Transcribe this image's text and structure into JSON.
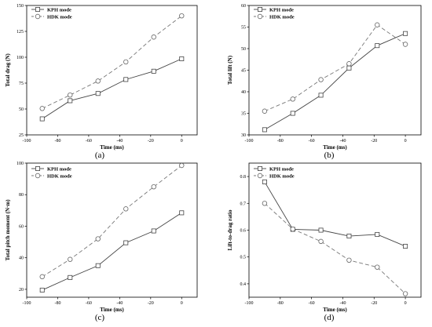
{
  "chart_data": [
    {
      "type": "line",
      "caption": "(a)",
      "xlabel": "Time (ms)",
      "ylabel": "Total drag (N)",
      "xlim": [
        -100,
        10
      ],
      "ylim": [
        25,
        150
      ],
      "xticks": [
        -100,
        -80,
        -60,
        -40,
        -20,
        0
      ],
      "yticks": [
        25,
        50,
        75,
        100,
        125,
        150
      ],
      "grid": false,
      "legend": "top-left",
      "x": [
        -90,
        -72,
        -54,
        -36,
        -18,
        0
      ],
      "series": [
        {
          "name": "KPH mode",
          "marker": "square",
          "dash": "solid",
          "values": [
            40.5,
            58,
            65,
            78.5,
            86.5,
            98.5
          ]
        },
        {
          "name": "HDK mode",
          "marker": "circle",
          "dash": "dashed",
          "values": [
            50.5,
            63.5,
            77,
            95.5,
            119.5,
            140
          ]
        }
      ]
    },
    {
      "type": "line",
      "caption": "(b)",
      "xlabel": "Time (ms)",
      "ylabel": "Total lift (N)",
      "xlim": [
        -100,
        10
      ],
      "ylim": [
        30,
        60
      ],
      "xticks": [
        -100,
        -80,
        -60,
        -40,
        -20,
        0
      ],
      "yticks": [
        30,
        35,
        40,
        45,
        50,
        55,
        60
      ],
      "grid": false,
      "legend": "top-left",
      "x": [
        -90,
        -72,
        -54,
        -36,
        -18,
        0
      ],
      "series": [
        {
          "name": "KPH mode",
          "marker": "square",
          "dash": "solid",
          "values": [
            31.2,
            35.0,
            39.2,
            45.5,
            50.7,
            53.5
          ]
        },
        {
          "name": "HDK mode",
          "marker": "circle",
          "dash": "dashed",
          "values": [
            35.5,
            38.3,
            42.8,
            46.5,
            55.5,
            51.0
          ]
        }
      ]
    },
    {
      "type": "line",
      "caption": "(c)",
      "xlabel": "Time (ms)",
      "ylabel": "Total pitch moment (N·m)",
      "xlim": [
        -100,
        10
      ],
      "ylim": [
        15,
        100
      ],
      "xticks": [
        -100,
        -80,
        -60,
        -40,
        -20,
        0
      ],
      "yticks": [
        20,
        40,
        60,
        80,
        100
      ],
      "grid": false,
      "legend": "top-left",
      "x": [
        -90,
        -72,
        -54,
        -36,
        -18,
        0
      ],
      "series": [
        {
          "name": "KPH mode",
          "marker": "square",
          "dash": "solid",
          "values": [
            19.5,
            27.5,
            35,
            49.5,
            57,
            68.5
          ]
        },
        {
          "name": "HDK mode",
          "marker": "circle",
          "dash": "dashed",
          "values": [
            28,
            39,
            52,
            71,
            85,
            98.5
          ]
        }
      ]
    },
    {
      "type": "line",
      "caption": "(d)",
      "xlabel": "Time (ms)",
      "ylabel": "Lift-to-drag ratio",
      "xlim": [
        -100,
        10
      ],
      "ylim": [
        0.35,
        0.85
      ],
      "xticks": [
        -100,
        -80,
        -60,
        -40,
        -20,
        0
      ],
      "yticks": [
        0.4,
        0.5,
        0.6,
        0.7,
        0.8
      ],
      "grid": false,
      "legend": "top-right",
      "x": [
        -90,
        -72,
        -54,
        -36,
        -18,
        0
      ],
      "series": [
        {
          "name": "KPH mode",
          "marker": "square",
          "dash": "solid",
          "values": [
            0.78,
            0.603,
            0.6,
            0.578,
            0.584,
            0.54
          ]
        },
        {
          "name": "HDK mode",
          "marker": "circle",
          "dash": "dashed",
          "values": [
            0.7,
            0.604,
            0.558,
            0.488,
            0.462,
            0.363
          ]
        }
      ]
    }
  ]
}
